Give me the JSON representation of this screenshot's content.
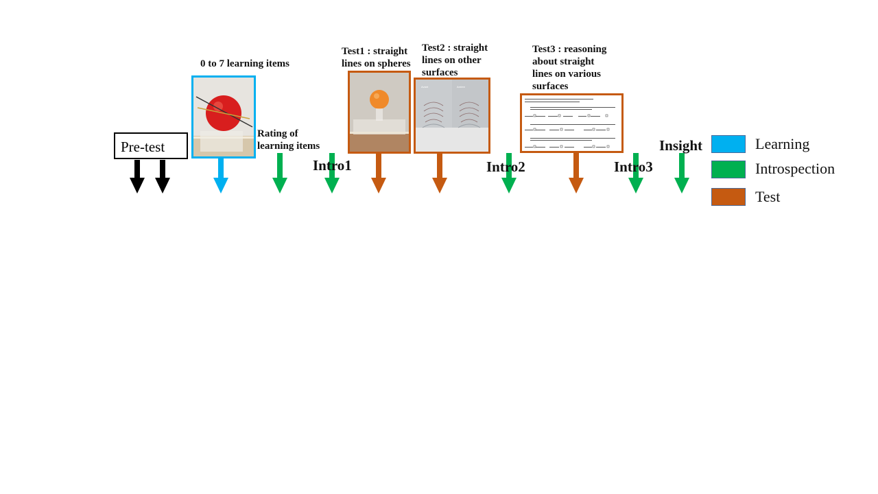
{
  "diagram": {
    "pretest_label": "Pre-test",
    "stages": {
      "learning_items": "0 to 7 learning items",
      "rating_line1": "Rating of",
      "rating_line2": "learning items",
      "intro1": "Intro1",
      "test1_line1": "Test1 : straight",
      "test1_line2": "lines on spheres",
      "test2_line1": "Test2 : straight",
      "test2_line2": "lines on other",
      "test2_line3": "surfaces",
      "intro2": "Intro2",
      "test3_line1": "Test3 : reasoning",
      "test3_line2": "about straight",
      "test3_line3": "lines on various",
      "test3_line4": "surfaces",
      "intro3": "Intro3",
      "insight": "Insight"
    },
    "legend": [
      {
        "label": "Learning",
        "color": "#00b0f0"
      },
      {
        "label": "Introspection",
        "color": "#00b050"
      },
      {
        "label": "Test",
        "color": "#c55a11"
      }
    ],
    "colors": {
      "learning": "#00b0f0",
      "introspection": "#00b050",
      "test": "#c55a11",
      "pretest": "#000000",
      "timeline": "#111111"
    }
  }
}
